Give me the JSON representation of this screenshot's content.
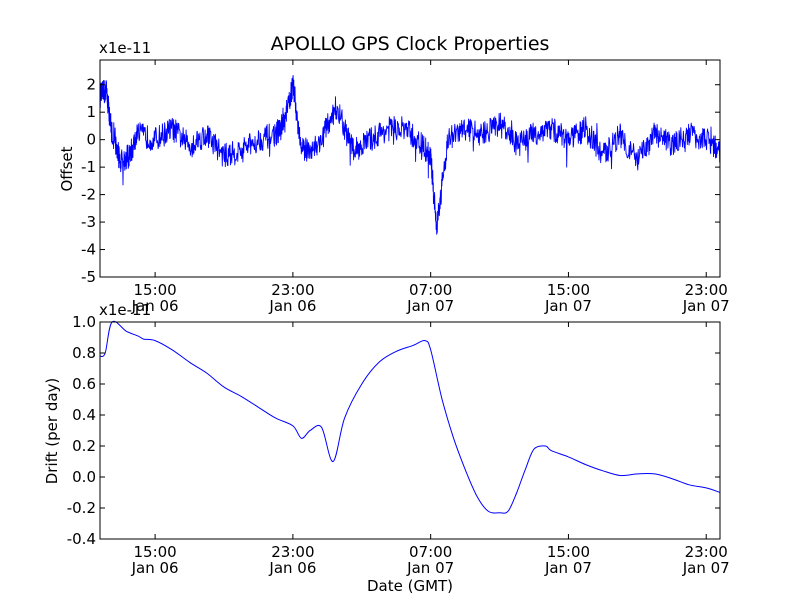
{
  "figure": {
    "title": "APOLLO GPS Clock Properties",
    "xlabel": "Date (GMT)"
  },
  "x_ticks": [
    {
      "time": "Jan 06 15:00",
      "line1": "15:00",
      "line2": "Jan 06"
    },
    {
      "time": "Jan 06 23:00",
      "line1": "23:00",
      "line2": "Jan 06"
    },
    {
      "time": "Jan 07 07:00",
      "line1": "07:00",
      "line2": "Jan 07"
    },
    {
      "time": "Jan 07 15:00",
      "line1": "15:00",
      "line2": "Jan 07"
    },
    {
      "time": "Jan 07 23:00",
      "line1": "23:00",
      "line2": "Jan 07"
    }
  ],
  "chart_data": [
    {
      "type": "line",
      "ylabel": "Offset",
      "y_multiplier": "x1e-11",
      "xlim": [
        "Jan 06 11:48",
        "Jan 07 23:48"
      ],
      "ylim": [
        -5,
        2.9
      ],
      "y_ticks": [
        2,
        1,
        0,
        -1,
        -2,
        -3,
        -4,
        -5
      ],
      "y_tick_labels": [
        "2",
        "1",
        "0",
        "-1",
        "-2",
        "-3",
        "-4",
        "-5"
      ],
      "color": "#0000ff",
      "grid": false,
      "series": [
        {
          "x": [
            "Jan 06 11:48",
            "Jan 06 12:10",
            "Jan 06 12:30",
            "Jan 06 13:00",
            "Jan 06 13:30",
            "Jan 06 14:00",
            "Jan 06 15:00",
            "Jan 06 16:00",
            "Jan 06 17:00",
            "Jan 06 18:00",
            "Jan 06 19:00",
            "Jan 06 20:00",
            "Jan 06 21:00",
            "Jan 06 22:00",
            "Jan 06 22:30",
            "Jan 06 23:00",
            "Jan 06 23:30",
            "Jan 07 00:30",
            "Jan 07 01:30",
            "Jan 07 02:30",
            "Jan 07 03:30",
            "Jan 07 04:30",
            "Jan 07 05:30",
            "Jan 07 06:30",
            "Jan 07 07:00",
            "Jan 07 07:20",
            "Jan 07 08:00",
            "Jan 07 09:00",
            "Jan 07 10:00",
            "Jan 07 11:00",
            "Jan 07 12:00",
            "Jan 07 13:00",
            "Jan 07 14:00",
            "Jan 07 15:00",
            "Jan 07 16:00",
            "Jan 07 17:00",
            "Jan 07 18:00",
            "Jan 07 19:00",
            "Jan 07 20:00",
            "Jan 07 21:00",
            "Jan 07 22:00",
            "Jan 07 23:00",
            "Jan 07 23:48"
          ],
          "y": [
            1.6,
            1.8,
            0.2,
            -0.8,
            -0.6,
            0.2,
            0.0,
            0.4,
            -0.2,
            0.2,
            -0.6,
            -0.4,
            0.0,
            0.2,
            0.6,
            2.0,
            -0.4,
            -0.2,
            1.2,
            -0.4,
            0.0,
            0.4,
            0.4,
            -0.2,
            -0.6,
            -3.2,
            0.0,
            0.4,
            0.2,
            0.6,
            -0.2,
            0.2,
            0.4,
            0.0,
            0.4,
            -0.6,
            0.2,
            -0.8,
            0.2,
            -0.2,
            0.2,
            0.0,
            -0.4
          ]
        }
      ]
    },
    {
      "type": "line",
      "ylabel": "Drift (per day)",
      "y_multiplier": "x1e-11",
      "xlim": [
        "Jan 06 11:48",
        "Jan 07 23:48"
      ],
      "ylim": [
        -0.4,
        1.0
      ],
      "y_ticks": [
        1.0,
        0.8,
        0.6,
        0.4,
        0.2,
        0.0,
        -0.2,
        -0.4
      ],
      "y_tick_labels": [
        "1.0",
        "0.8",
        "0.6",
        "0.4",
        "0.2",
        "0.0",
        "-0.2",
        "-0.4"
      ],
      "color": "#0000ff",
      "grid": false,
      "series": [
        {
          "x": [
            "Jan 06 11:48",
            "Jan 06 12:06",
            "Jan 06 12:30",
            "Jan 06 13:20",
            "Jan 06 14:00",
            "Jan 06 14:20",
            "Jan 06 15:00",
            "Jan 06 16:00",
            "Jan 06 17:00",
            "Jan 06 18:00",
            "Jan 06 19:00",
            "Jan 06 20:00",
            "Jan 06 21:00",
            "Jan 06 22:00",
            "Jan 06 23:00",
            "Jan 06 23:30",
            "Jan 07 00:00",
            "Jan 07 00:40",
            "Jan 07 01:20",
            "Jan 07 02:00",
            "Jan 07 03:00",
            "Jan 07 04:00",
            "Jan 07 05:00",
            "Jan 07 06:00",
            "Jan 07 06:40",
            "Jan 07 07:00",
            "Jan 07 07:40",
            "Jan 07 08:20",
            "Jan 07 09:00",
            "Jan 07 09:40",
            "Jan 07 10:20",
            "Jan 07 11:00",
            "Jan 07 11:30",
            "Jan 07 12:00",
            "Jan 07 12:30",
            "Jan 07 13:00",
            "Jan 07 13:40",
            "Jan 07 14:00",
            "Jan 07 15:00",
            "Jan 07 16:00",
            "Jan 07 17:00",
            "Jan 07 18:00",
            "Jan 07 19:00",
            "Jan 07 20:00",
            "Jan 07 21:00",
            "Jan 07 22:00",
            "Jan 07 23:00",
            "Jan 07 23:48"
          ],
          "y": [
            0.78,
            0.8,
            1.0,
            0.94,
            0.91,
            0.89,
            0.88,
            0.82,
            0.74,
            0.67,
            0.58,
            0.52,
            0.45,
            0.38,
            0.33,
            0.25,
            0.3,
            0.32,
            0.1,
            0.38,
            0.6,
            0.74,
            0.81,
            0.85,
            0.88,
            0.82,
            0.5,
            0.25,
            0.05,
            -0.12,
            -0.22,
            -0.23,
            -0.22,
            -0.1,
            0.05,
            0.18,
            0.2,
            0.17,
            0.13,
            0.08,
            0.04,
            0.01,
            0.02,
            0.02,
            -0.01,
            -0.05,
            -0.07,
            -0.1
          ]
        }
      ]
    }
  ]
}
